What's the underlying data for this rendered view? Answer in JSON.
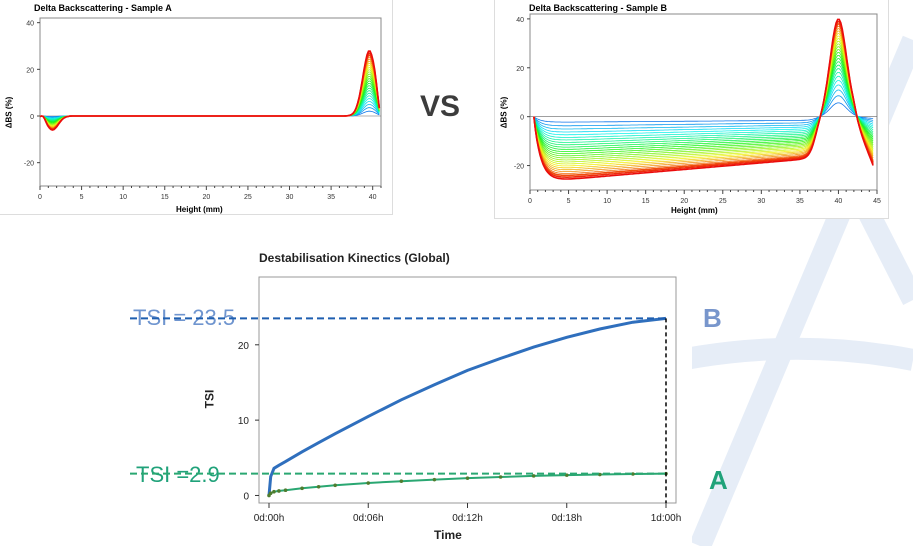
{
  "comparison_label": "VS",
  "colors": {
    "blue": "#2f6fbd",
    "green": "#2aa772",
    "tsi_b_label": "#6f95cf",
    "tsi_a_label": "#20a27a",
    "letter_b": "#7896cc",
    "letter_a": "#20a27a",
    "marker_a": "#4f7d2f"
  },
  "annotations": {
    "tsi_b": "TSI = 23.5",
    "tsi_a": "TSI =2.9",
    "letter_b": "B",
    "letter_a": "A"
  },
  "chart_data": [
    {
      "type": "line",
      "title": "Delta Backscattering - Sample A",
      "xlabel": "Height (mm)",
      "ylabel": "ΔBS (%)",
      "xlim": [
        0,
        41
      ],
      "ylim": [
        -30,
        42
      ],
      "xticks": [
        "0",
        "5",
        "10",
        "15",
        "20",
        "25",
        "30",
        "35",
        "40"
      ],
      "yticks": [
        "40",
        "20",
        "0",
        "-20"
      ],
      "series_note": "Family of ΔBS profiles over time, blue (early) to red (late)",
      "profile": {
        "dip_position_mm": 1.5,
        "dip_depth_pct": -6,
        "peak_position_mm": 39.6,
        "peak_height_pct": 28,
        "end_mm": 40.8
      }
    },
    {
      "type": "line",
      "title": "Delta Backscattering - Sample B",
      "xlabel": "Height (mm)",
      "ylabel": "ΔBS (%)",
      "xlim": [
        0,
        45
      ],
      "ylim": [
        -30,
        42
      ],
      "xticks": [
        "0",
        "5",
        "10",
        "15",
        "20",
        "25",
        "30",
        "35",
        "40",
        "45"
      ],
      "yticks": [
        "40",
        "20",
        "0",
        "-20"
      ],
      "series_note": "Family of ΔBS profiles over time, blue (early) to red (late)",
      "profile": {
        "start_mm": 0.5,
        "plateau_start_pct": -27,
        "plateau_end_pct": -17,
        "zero_cross_mm": 37,
        "peak_position_mm": 40,
        "peak_height_pct": 40,
        "end_mm": 44.5
      }
    },
    {
      "type": "line",
      "title": "Destabilisation Kinectics (Global)",
      "xlabel": "Time",
      "ylabel": "TSI",
      "xlim_hours": [
        0,
        24
      ],
      "ylim": [
        -1,
        29
      ],
      "xticks": [
        "0d:00h",
        "0d:06h",
        "0d:12h",
        "0d:18h",
        "1d:00h"
      ],
      "yticks": [
        "0",
        "10",
        "20"
      ],
      "series": [
        {
          "name": "Sample B",
          "hours": [
            0,
            0.1,
            0.3,
            0.6,
            1,
            2,
            3,
            4,
            6,
            8,
            10,
            12,
            14,
            16,
            18,
            20,
            22,
            24
          ],
          "values": [
            0,
            2.5,
            3.6,
            4.0,
            4.5,
            5.8,
            7.0,
            8.2,
            10.5,
            12.7,
            14.7,
            16.6,
            18.2,
            19.7,
            21.0,
            22.1,
            23.0,
            23.5
          ]
        },
        {
          "name": "Sample A",
          "hours": [
            0,
            0.1,
            0.3,
            0.6,
            1,
            2,
            3,
            4,
            6,
            8,
            10,
            12,
            14,
            16,
            18,
            20,
            22,
            24
          ],
          "values": [
            0,
            0.3,
            0.5,
            0.6,
            0.7,
            0.95,
            1.15,
            1.35,
            1.65,
            1.9,
            2.1,
            2.3,
            2.45,
            2.6,
            2.7,
            2.78,
            2.85,
            2.9
          ]
        }
      ],
      "reference_lines": [
        23.5,
        2.9
      ]
    }
  ]
}
